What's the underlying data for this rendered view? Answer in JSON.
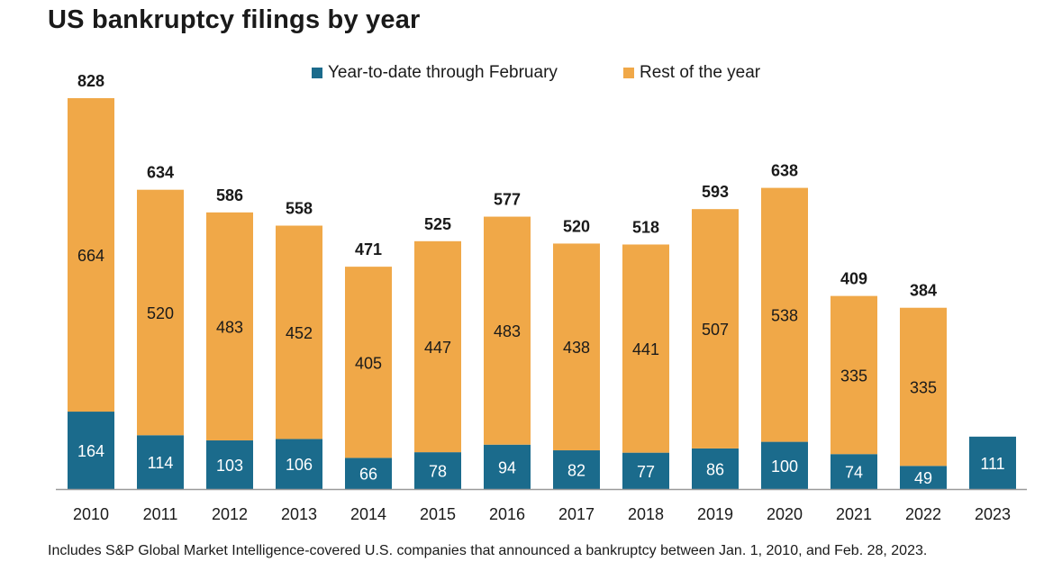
{
  "title": "US bankruptcy filings by year",
  "footnote": "Includes S&P Global Market Intelligence-covered U.S. companies that announced a bankruptcy between Jan. 1, 2010, and Feb. 28, 2023.",
  "colors": {
    "ytd": "#1b6b8c",
    "rest": "#f0a848",
    "axis": "#999999",
    "text": "#1a1a1a"
  },
  "chart_data": {
    "type": "bar",
    "stacked": true,
    "categories": [
      "2010",
      "2011",
      "2012",
      "2013",
      "2014",
      "2015",
      "2016",
      "2017",
      "2018",
      "2019",
      "2020",
      "2021",
      "2022",
      "2023"
    ],
    "series": [
      {
        "name": "Year-to-date through February",
        "color": "#1b6b8c",
        "values": [
          164,
          114,
          103,
          106,
          66,
          78,
          94,
          82,
          77,
          86,
          100,
          74,
          49,
          111
        ]
      },
      {
        "name": "Rest of the year",
        "color": "#f0a848",
        "values": [
          664,
          520,
          483,
          452,
          405,
          447,
          483,
          438,
          441,
          507,
          538,
          335,
          335,
          null
        ]
      }
    ],
    "totals": [
      828,
      634,
      586,
      558,
      471,
      525,
      577,
      520,
      518,
      593,
      638,
      409,
      384,
      null
    ],
    "legend_position": "top-center",
    "grid": false,
    "ylim": [
      0,
      828
    ]
  }
}
